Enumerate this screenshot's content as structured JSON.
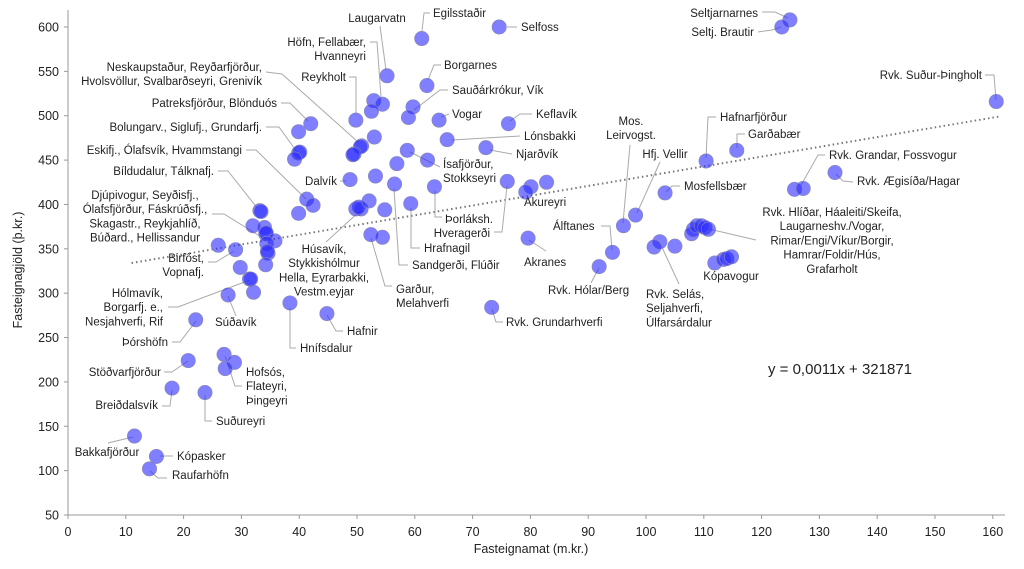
{
  "chart_data": {
    "type": "scatter",
    "xlabel": "Fasteignamat (m.kr.)",
    "ylabel": "Fasteignagjöld (þ.kr.)",
    "xlim": [
      0,
      162
    ],
    "ylim": [
      50,
      620
    ],
    "xticks": [
      "0",
      "10",
      "20",
      "30",
      "40",
      "50",
      "60",
      "70",
      "80",
      "90",
      "100",
      "110",
      "120",
      "130",
      "140",
      "150",
      "160"
    ],
    "yticks": [
      "50",
      "100",
      "150",
      "200",
      "250",
      "300",
      "350",
      "400",
      "450",
      "500",
      "550",
      "600"
    ],
    "grid": false,
    "trendline": {
      "label": "y = 0,0011x + 321871",
      "slope": 1.1,
      "intercept": 321.871,
      "x_range": [
        11,
        161
      ]
    },
    "points": [
      {
        "x": 74.6,
        "y": 600
      },
      {
        "x": 61.2,
        "y": 587
      },
      {
        "x": 55.2,
        "y": 545
      },
      {
        "x": 62.1,
        "y": 534
      },
      {
        "x": 52.9,
        "y": 517
      },
      {
        "x": 54.4,
        "y": 513
      },
      {
        "x": 52.5,
        "y": 505
      },
      {
        "x": 59.7,
        "y": 510
      },
      {
        "x": 58.9,
        "y": 498
      },
      {
        "x": 49.8,
        "y": 495
      },
      {
        "x": 64.2,
        "y": 495
      },
      {
        "x": 76.2,
        "y": 491
      },
      {
        "x": 42.0,
        "y": 491
      },
      {
        "x": 39.9,
        "y": 482
      },
      {
        "x": 53.0,
        "y": 476
      },
      {
        "x": 65.6,
        "y": 473
      },
      {
        "x": 50.8,
        "y": 466
      },
      {
        "x": 50.6,
        "y": 465
      },
      {
        "x": 49.5,
        "y": 457
      },
      {
        "x": 49.3,
        "y": 456
      },
      {
        "x": 72.3,
        "y": 464
      },
      {
        "x": 39.9,
        "y": 458
      },
      {
        "x": 40.1,
        "y": 459
      },
      {
        "x": 39.2,
        "y": 451
      },
      {
        "x": 58.7,
        "y": 461
      },
      {
        "x": 62.2,
        "y": 450
      },
      {
        "x": 56.9,
        "y": 446
      },
      {
        "x": 48.8,
        "y": 428
      },
      {
        "x": 53.2,
        "y": 432
      },
      {
        "x": 56.5,
        "y": 423
      },
      {
        "x": 63.4,
        "y": 420
      },
      {
        "x": 76.0,
        "y": 426
      },
      {
        "x": 80.1,
        "y": 420
      },
      {
        "x": 79.2,
        "y": 414
      },
      {
        "x": 82.8,
        "y": 425
      },
      {
        "x": 41.3,
        "y": 406
      },
      {
        "x": 42.4,
        "y": 399
      },
      {
        "x": 39.9,
        "y": 390
      },
      {
        "x": 33.2,
        "y": 393
      },
      {
        "x": 33.4,
        "y": 392
      },
      {
        "x": 49.8,
        "y": 395
      },
      {
        "x": 50.7,
        "y": 395
      },
      {
        "x": 50.3,
        "y": 397
      },
      {
        "x": 52.1,
        "y": 404
      },
      {
        "x": 54.8,
        "y": 394
      },
      {
        "x": 59.3,
        "y": 401
      },
      {
        "x": 32.0,
        "y": 376
      },
      {
        "x": 34.0,
        "y": 374
      },
      {
        "x": 34.2,
        "y": 367
      },
      {
        "x": 34.3,
        "y": 368
      },
      {
        "x": 35.8,
        "y": 359
      },
      {
        "x": 34.4,
        "y": 356
      },
      {
        "x": 34.6,
        "y": 345
      },
      {
        "x": 34.5,
        "y": 347
      },
      {
        "x": 34.2,
        "y": 332
      },
      {
        "x": 26.0,
        "y": 354
      },
      {
        "x": 29.0,
        "y": 349
      },
      {
        "x": 52.4,
        "y": 366
      },
      {
        "x": 54.4,
        "y": 363
      },
      {
        "x": 79.6,
        "y": 362
      },
      {
        "x": 94.2,
        "y": 346
      },
      {
        "x": 91.9,
        "y": 330
      },
      {
        "x": 29.8,
        "y": 329
      },
      {
        "x": 31.4,
        "y": 316
      },
      {
        "x": 31.6,
        "y": 316
      },
      {
        "x": 32.1,
        "y": 301
      },
      {
        "x": 27.7,
        "y": 298
      },
      {
        "x": 38.4,
        "y": 289
      },
      {
        "x": 73.3,
        "y": 284
      },
      {
        "x": 44.8,
        "y": 277
      },
      {
        "x": 22.1,
        "y": 270
      },
      {
        "x": 27.0,
        "y": 231
      },
      {
        "x": 28.8,
        "y": 222
      },
      {
        "x": 27.2,
        "y": 215
      },
      {
        "x": 20.8,
        "y": 224
      },
      {
        "x": 18.0,
        "y": 193
      },
      {
        "x": 23.7,
        "y": 188
      },
      {
        "x": 11.5,
        "y": 139
      },
      {
        "x": 15.3,
        "y": 116
      },
      {
        "x": 14.1,
        "y": 102
      },
      {
        "x": 124.9,
        "y": 608
      },
      {
        "x": 123.5,
        "y": 600
      },
      {
        "x": 160.6,
        "y": 516
      },
      {
        "x": 110.4,
        "y": 449
      },
      {
        "x": 115.7,
        "y": 461
      },
      {
        "x": 132.7,
        "y": 436
      },
      {
        "x": 125.7,
        "y": 417
      },
      {
        "x": 127.2,
        "y": 418
      },
      {
        "x": 103.3,
        "y": 413
      },
      {
        "x": 98.2,
        "y": 388
      },
      {
        "x": 96.1,
        "y": 376
      },
      {
        "x": 102.4,
        "y": 358
      },
      {
        "x": 101.4,
        "y": 352
      },
      {
        "x": 105.0,
        "y": 353
      },
      {
        "x": 108.2,
        "y": 372
      },
      {
        "x": 107.9,
        "y": 367
      },
      {
        "x": 108.8,
        "y": 376
      },
      {
        "x": 109.6,
        "y": 376
      },
      {
        "x": 110.2,
        "y": 374
      },
      {
        "x": 110.8,
        "y": 372
      },
      {
        "x": 111.9,
        "y": 334
      },
      {
        "x": 113.4,
        "y": 338
      },
      {
        "x": 114.0,
        "y": 339
      },
      {
        "x": 114.8,
        "y": 341
      }
    ],
    "annotations": [
      {
        "lines": [
          "Laugarvatn"
        ]
      },
      {
        "lines": [
          "Egilsstaðir"
        ]
      },
      {
        "lines": [
          "Selfoss"
        ]
      },
      {
        "lines": [
          "Höfn, Fellabær,",
          "Hvanneyri"
        ]
      },
      {
        "lines": [
          "Borgarnes"
        ]
      },
      {
        "lines": [
          "Reykholt"
        ]
      },
      {
        "lines": [
          "Sauðárkrókur, Vík"
        ]
      },
      {
        "lines": [
          "Neskaupstaður, Reyðarfjörður,",
          "Hvolsvöllur, Svalbarðseyri, Grenivík"
        ]
      },
      {
        "lines": [
          "Vogar"
        ]
      },
      {
        "lines": [
          "Keflavík"
        ]
      },
      {
        "lines": [
          "Lónsbakki"
        ]
      },
      {
        "lines": [
          "Njarðvík"
        ]
      },
      {
        "lines": [
          "Patreksfjörður, Blönduós"
        ]
      },
      {
        "lines": [
          "Bolungarv., Siglufj., Grundarfj."
        ]
      },
      {
        "lines": [
          "Eskifj., Ólafsvík, Hvammstangi"
        ]
      },
      {
        "lines": [
          "Dalvík"
        ]
      },
      {
        "lines": [
          "Ísafjörður,",
          "Stokkseyri"
        ]
      },
      {
        "lines": [
          "Þorláksh."
        ]
      },
      {
        "lines": [
          "Hveragerði"
        ]
      },
      {
        "lines": [
          "Akureyri"
        ]
      },
      {
        "lines": [
          "Hrafnagil"
        ]
      },
      {
        "lines": [
          "Sandgerði, Flúðir"
        ]
      },
      {
        "lines": [
          "Bíldudalur, Tálknafj."
        ]
      },
      {
        "lines": [
          "Djúpivogur, Seyðisfj.,",
          "Ólafsfjörður, Fáskrúðsfj.,",
          "Skagastr., Reykjahlíð,",
          "Búðard., Hellissandur"
        ]
      },
      {
        "lines": [
          "Húsavík,",
          "Stykkishólmur",
          "Hella, Eyrarbakki,",
          "Vestm.eyjar"
        ]
      },
      {
        "lines": [
          "Garður,",
          "Melahverfi"
        ]
      },
      {
        "lines": [
          "Birfőst,",
          "Vopnafj."
        ]
      },
      {
        "lines": [
          "Hólmavík,",
          "Borgarfj. e.,",
          "Nesjahverfi, Rif"
        ]
      },
      {
        "lines": [
          "Súðavík"
        ]
      },
      {
        "lines": [
          "Hnífsdalur"
        ]
      },
      {
        "lines": [
          "Hafnir"
        ]
      },
      {
        "lines": [
          "Þórshöfn"
        ]
      },
      {
        "lines": [
          "Stöðvarfjörður"
        ]
      },
      {
        "lines": [
          "Hofsós,",
          "Flateyri,",
          "Þingeyri"
        ]
      },
      {
        "lines": [
          "Breiðdalsvík"
        ]
      },
      {
        "lines": [
          "Suðureyri"
        ]
      },
      {
        "lines": [
          "Bakkafjörður"
        ]
      },
      {
        "lines": [
          "Kópasker"
        ]
      },
      {
        "lines": [
          "Raufarhöfn"
        ]
      },
      {
        "lines": [
          "Akranes"
        ]
      },
      {
        "lines": [
          "Álftanes"
        ]
      },
      {
        "lines": [
          "Rvk. Hólar/Berg"
        ]
      },
      {
        "lines": [
          "Rvk. Grundarhverfi"
        ]
      },
      {
        "lines": [
          "Seltjarnarnes"
        ]
      },
      {
        "lines": [
          "Seltj. Brautir"
        ]
      },
      {
        "lines": [
          "Rvk. Suður-Þingholt"
        ]
      },
      {
        "lines": [
          "Hafnarfjörður"
        ]
      },
      {
        "lines": [
          "Garðabær"
        ]
      },
      {
        "lines": [
          "Mos.",
          "Leirvogst."
        ]
      },
      {
        "lines": [
          "Hfj. Vellir"
        ]
      },
      {
        "lines": [
          "Mosfellsbær"
        ]
      },
      {
        "lines": [
          "Rvk. Grandar, Fossvogur"
        ]
      },
      {
        "lines": [
          "Rvk. Ægisíða/Hagar"
        ]
      },
      {
        "lines": [
          "Rvk. Hlíðar, Háaleiti/Skeifa,",
          "Laugarneshv./Vogar,",
          "Rimar/Engi/Víkur/Borgir,",
          "Hamrar/Foldir/Hús,",
          "Grafarholt"
        ]
      },
      {
        "lines": [
          "Kópavogur"
        ]
      },
      {
        "lines": [
          "Rvk. Selás,",
          "Seljahverfi,",
          "Úlfarsárdalur"
        ]
      }
    ],
    "colors": {
      "point": "#2a2aff",
      "axis": "#999999",
      "leader": "#aaaaaa",
      "trend": "#777777"
    }
  }
}
